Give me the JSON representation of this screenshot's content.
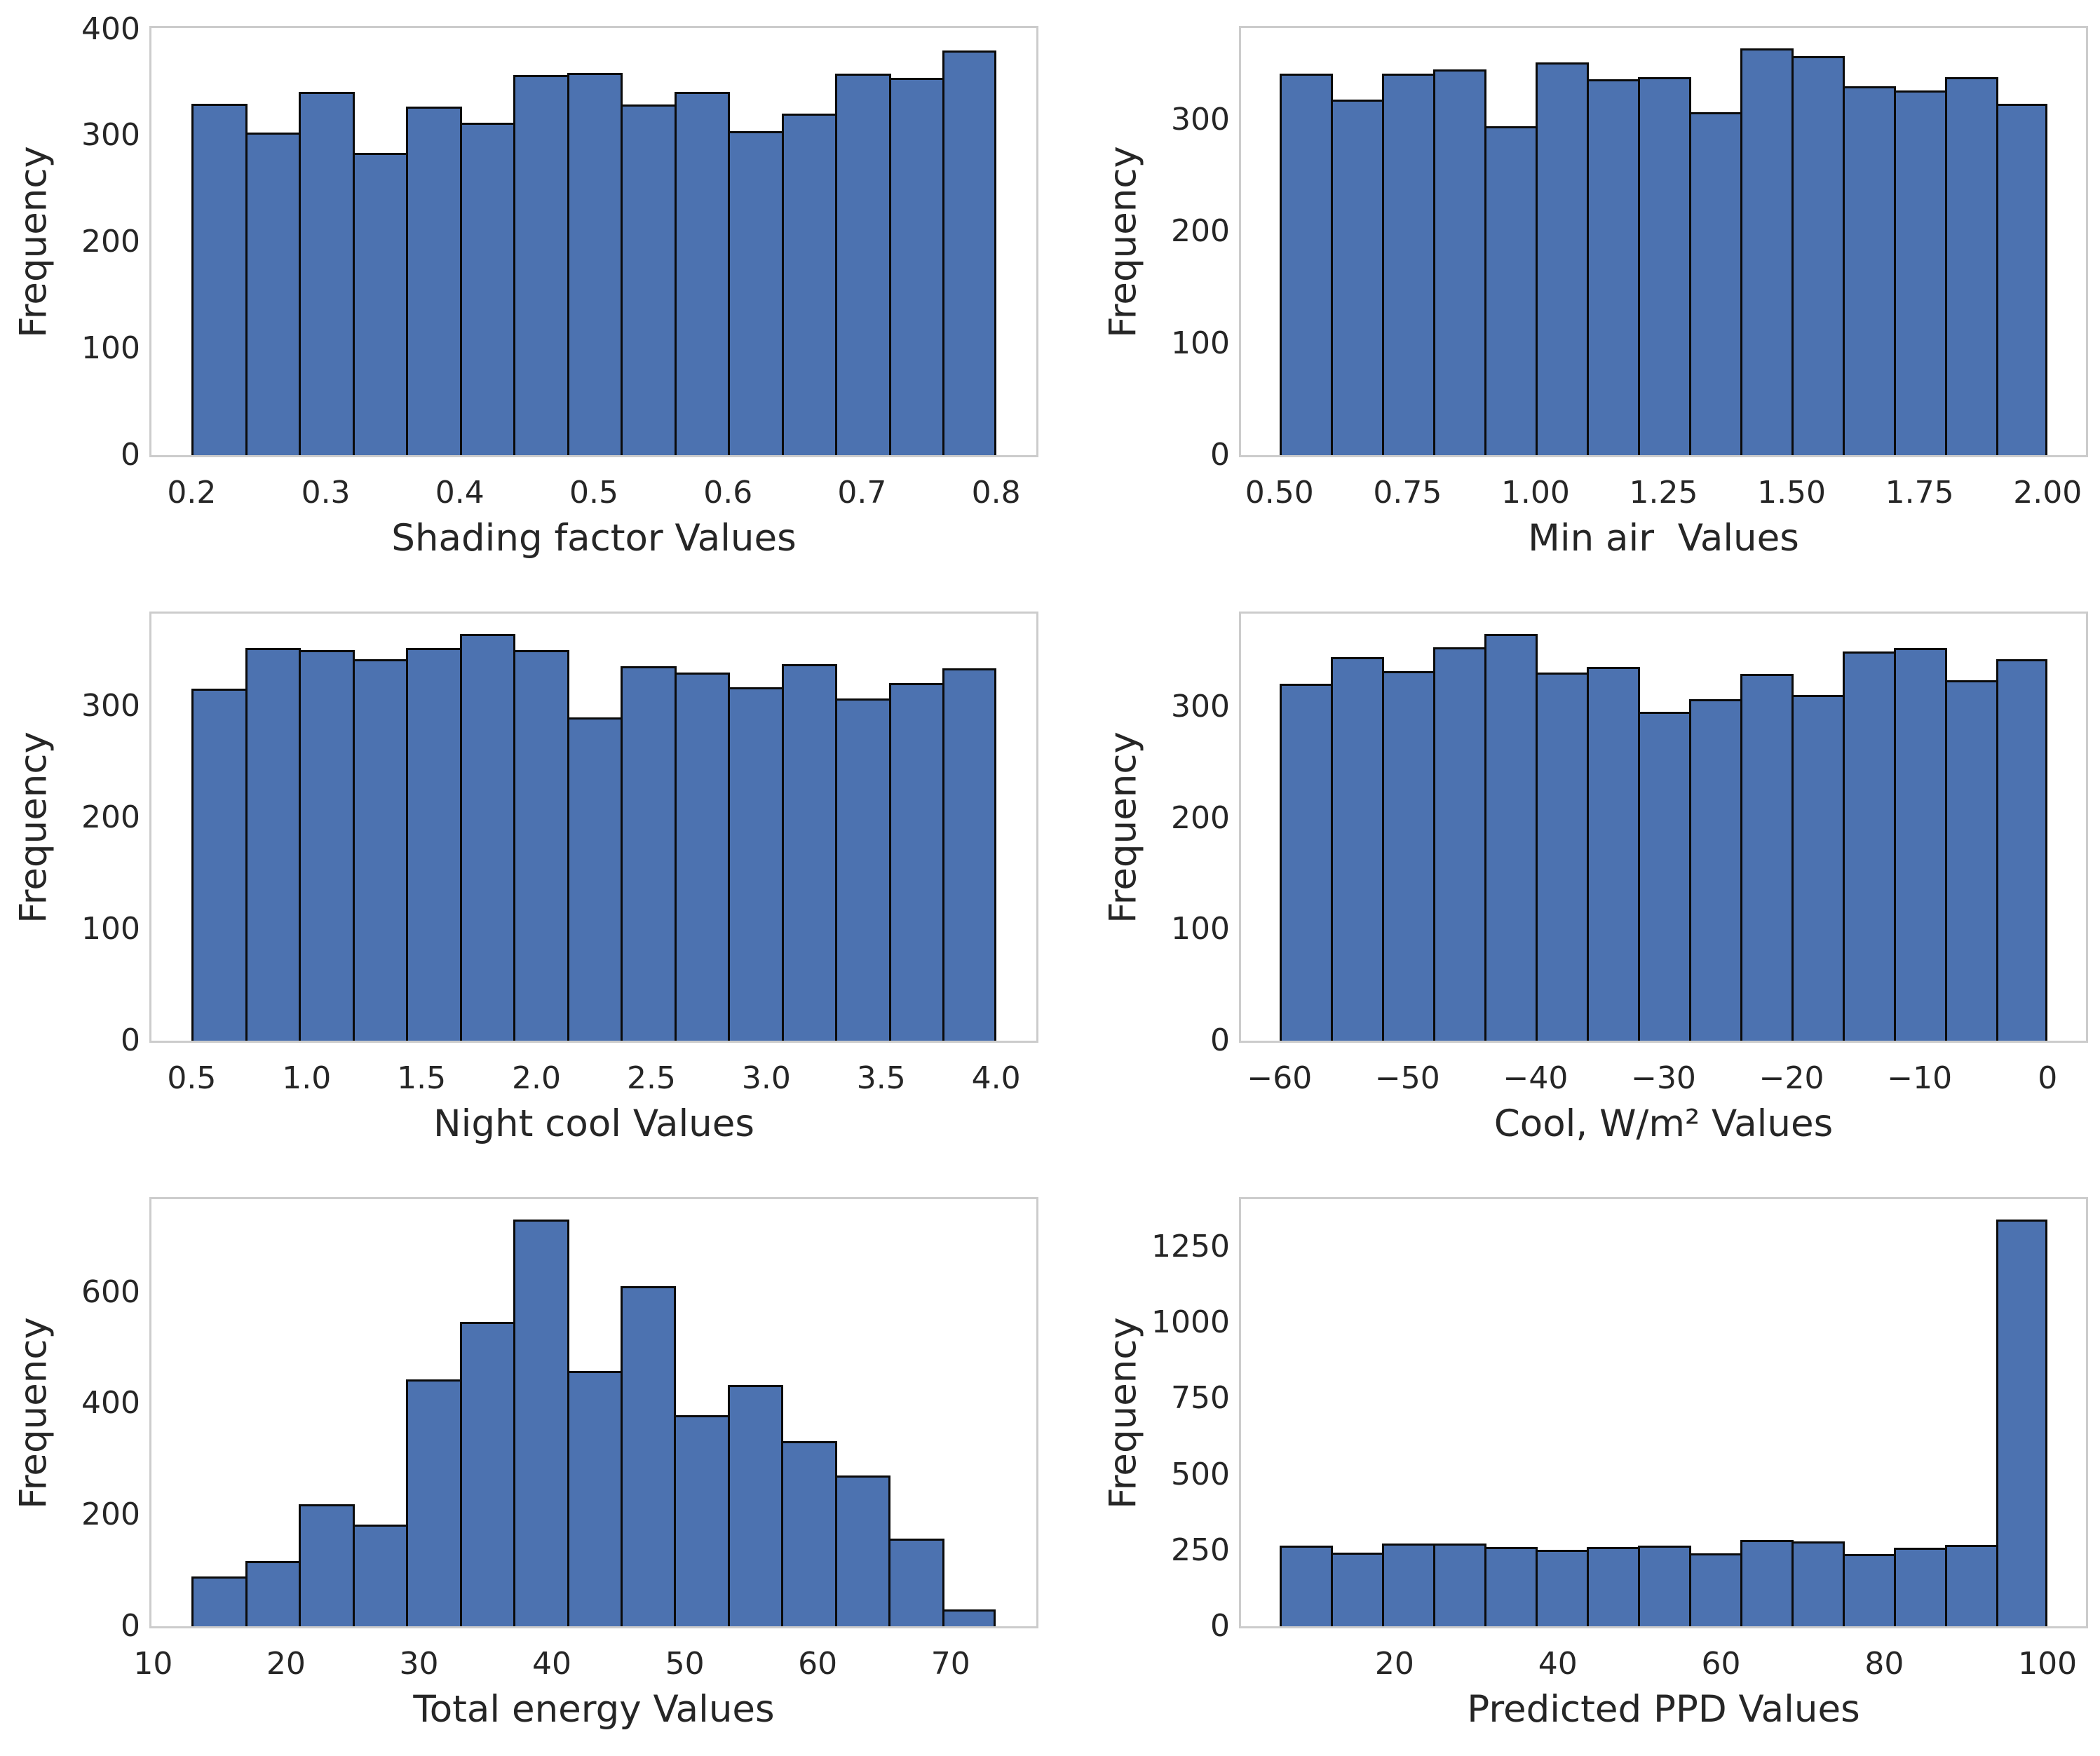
{
  "style": {
    "background": "#ffffff",
    "bar_fill": "#4C72B0",
    "bar_edge": "#0b0b0b",
    "spine_color": "#cccccc",
    "text_color": "#262626"
  },
  "chart_data": [
    {
      "type": "bar",
      "name": "shading-factor-histogram",
      "title": "",
      "xlabel": "Shading factor Values",
      "ylabel": "Frequency",
      "bin_start": 0.2,
      "bin_width": 0.04,
      "values": [
        330,
        303,
        341,
        284,
        327,
        312,
        357,
        359,
        329,
        341,
        304,
        321,
        358,
        354,
        380
      ],
      "xlim": [
        0.17,
        0.83
      ],
      "ylim": [
        0,
        401
      ],
      "xticks": [
        0.2,
        0.3,
        0.4,
        0.5,
        0.6,
        0.7,
        0.8
      ],
      "xtick_labels": [
        "0.2",
        "0.3",
        "0.4",
        "0.5",
        "0.6",
        "0.7",
        "0.8"
      ],
      "yticks": [
        0,
        100,
        200,
        300,
        400
      ],
      "ytick_labels": [
        "0",
        "100",
        "200",
        "300",
        "400"
      ],
      "grid": false,
      "legend": null
    },
    {
      "type": "bar",
      "name": "min-air-histogram",
      "title": "",
      "xlabel": "Min air  Values",
      "ylabel": "Frequency",
      "bin_start": 0.5,
      "bin_width": 0.1,
      "values": [
        341,
        318,
        341,
        345,
        294,
        351,
        336,
        338,
        307,
        364,
        357,
        330,
        326,
        338,
        314
      ],
      "xlim": [
        0.425,
        2.075
      ],
      "ylim": [
        0,
        382
      ],
      "xticks": [
        0.5,
        0.75,
        1.0,
        1.25,
        1.5,
        1.75,
        2.0
      ],
      "xtick_labels": [
        "0.50",
        "0.75",
        "1.00",
        "1.25",
        "1.50",
        "1.75",
        "2.00"
      ],
      "yticks": [
        0,
        100,
        200,
        300
      ],
      "ytick_labels": [
        "0",
        "100",
        "200",
        "300"
      ],
      "grid": false,
      "legend": null
    },
    {
      "type": "bar",
      "name": "night-cool-histogram",
      "title": "",
      "xlabel": "Night cool Values",
      "ylabel": "Frequency",
      "bin_start": 0.5,
      "bin_width": 0.2333333,
      "values": [
        316,
        352,
        350,
        342,
        352,
        365,
        350,
        290,
        336,
        330,
        317,
        338,
        307,
        321,
        334
      ],
      "xlim": [
        0.325,
        4.175
      ],
      "ylim": [
        0,
        383
      ],
      "xticks": [
        0.5,
        1.0,
        1.5,
        2.0,
        2.5,
        3.0,
        3.5,
        4.0
      ],
      "xtick_labels": [
        "0.5",
        "1.0",
        "1.5",
        "2.0",
        "2.5",
        "3.0",
        "3.5",
        "4.0"
      ],
      "yticks": [
        0,
        100,
        200,
        300
      ],
      "ytick_labels": [
        "0",
        "100",
        "200",
        "300"
      ],
      "grid": false,
      "legend": null
    },
    {
      "type": "bar",
      "name": "cool-wm2-histogram",
      "title": "",
      "xlabel": "Cool, W/m² Values",
      "ylabel": "Frequency",
      "bin_start": -60,
      "bin_width": 4,
      "values": [
        321,
        345,
        332,
        354,
        366,
        331,
        336,
        296,
        307,
        330,
        311,
        350,
        353,
        324,
        343
      ],
      "xlim": [
        -63,
        3
      ],
      "ylim": [
        0,
        384
      ],
      "xticks": [
        -60,
        -50,
        -40,
        -30,
        -20,
        -10,
        0
      ],
      "xtick_labels": [
        "−60",
        "−50",
        "−40",
        "−30",
        "−20",
        "−10",
        "0"
      ],
      "yticks": [
        0,
        100,
        200,
        300
      ],
      "ytick_labels": [
        "0",
        "100",
        "200",
        "300"
      ],
      "grid": false,
      "legend": null
    },
    {
      "type": "bar",
      "name": "total-energy-histogram",
      "title": "",
      "xlabel": "Total energy Values",
      "ylabel": "Frequency",
      "bin_start": 12.9,
      "bin_width": 4.0333333,
      "values": [
        90,
        117,
        219,
        183,
        443,
        546,
        731,
        458,
        611,
        379,
        433,
        333,
        271,
        157,
        30
      ],
      "xlim": [
        9.875,
        76.45
      ],
      "ylim": [
        0,
        767
      ],
      "xticks": [
        10,
        20,
        30,
        40,
        50,
        60,
        70
      ],
      "xtick_labels": [
        "10",
        "20",
        "30",
        "40",
        "50",
        "60",
        "70"
      ],
      "yticks": [
        0,
        200,
        400,
        600
      ],
      "ytick_labels": [
        "0",
        "200",
        "400",
        "600"
      ],
      "grid": false,
      "legend": null
    },
    {
      "type": "bar",
      "name": "predicted-ppd-histogram",
      "title": "",
      "xlabel": "Predicted PPD Values",
      "ylabel": "Frequency",
      "bin_start": 5.9,
      "bin_width": 6.2733333,
      "values": [
        265,
        243,
        273,
        273,
        261,
        252,
        261,
        265,
        240,
        285,
        279,
        238,
        258,
        267,
        1340
      ],
      "xlim": [
        1.195,
        104.71
      ],
      "ylim": [
        0,
        1407
      ],
      "xticks": [
        20,
        40,
        60,
        80,
        100
      ],
      "xtick_labels": [
        "20",
        "40",
        "60",
        "80",
        "100"
      ],
      "yticks": [
        0,
        250,
        500,
        750,
        1000,
        1250
      ],
      "ytick_labels": [
        "0",
        "250",
        "500",
        "750",
        "1000",
        "1250"
      ],
      "grid": false,
      "legend": null
    }
  ]
}
